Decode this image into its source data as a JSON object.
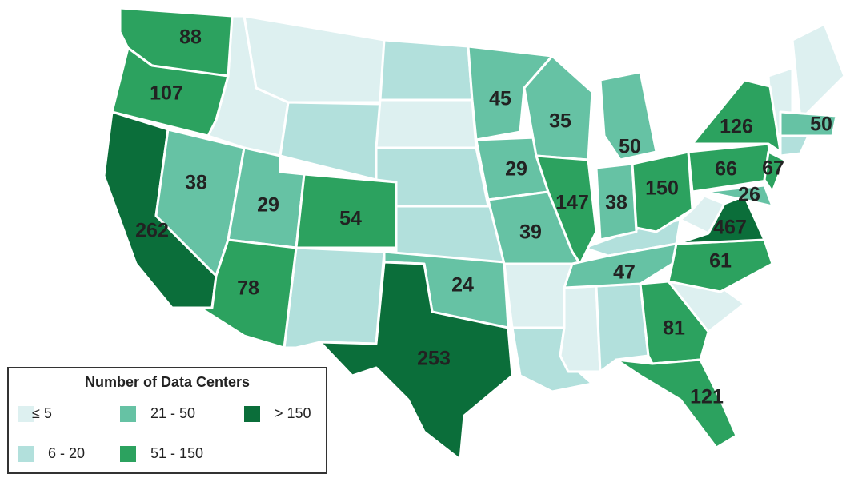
{
  "legend": {
    "title": "Number of Data Centers",
    "items": [
      {
        "label": "≤ 5",
        "color": "#ddf0f0"
      },
      {
        "label": "6 - 20",
        "color": "#b2e0dc"
      },
      {
        "label": "21 - 50",
        "color": "#66c2a4"
      },
      {
        "label": "51 - 150",
        "color": "#2ca25f"
      },
      {
        "label": "> 150",
        "color": "#0b6e3a"
      }
    ]
  },
  "regions": [
    {
      "value": 88,
      "color": "#2ca25f"
    },
    {
      "value": 107,
      "color": "#2ca25f"
    },
    {
      "value": 262,
      "color": "#0b6e3a"
    },
    {
      "value": 38,
      "color": "#66c2a4"
    },
    {
      "value": 29,
      "color": "#66c2a4"
    },
    {
      "value": 54,
      "color": "#2ca25f"
    },
    {
      "value": 78,
      "color": "#2ca25f"
    },
    {
      "value": 24,
      "color": "#66c2a4"
    },
    {
      "value": 253,
      "color": "#0b6e3a"
    },
    {
      "value": 45,
      "color": "#66c2a4"
    },
    {
      "value": 29,
      "color": "#66c2a4"
    },
    {
      "value": 39,
      "color": "#66c2a4"
    },
    {
      "value": 35,
      "color": "#66c2a4"
    },
    {
      "value": 147,
      "color": "#2ca25f"
    },
    {
      "value": 50,
      "color": "#66c2a4"
    },
    {
      "value": 38,
      "color": "#66c2a4"
    },
    {
      "value": 150,
      "color": "#2ca25f"
    },
    {
      "value": 47,
      "color": "#66c2a4"
    },
    {
      "value": 81,
      "color": "#2ca25f"
    },
    {
      "value": 121,
      "color": "#2ca25f"
    },
    {
      "value": 61,
      "color": "#2ca25f"
    },
    {
      "value": 467,
      "color": "#0b6e3a"
    },
    {
      "value": 66,
      "color": "#2ca25f"
    },
    {
      "value": 126,
      "color": "#2ca25f"
    },
    {
      "value": 67,
      "color": "#2ca25f"
    },
    {
      "value": 26,
      "color": "#66c2a4"
    },
    {
      "value": 50,
      "color": "#66c2a4"
    }
  ]
}
